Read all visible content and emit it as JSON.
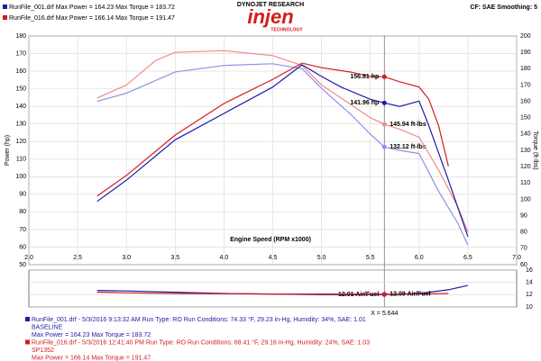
{
  "header": {
    "run1": "RunFile_001.drf Max Power = 164.23   Max Torque = 183.72",
    "run2": "RunFile_016.drf Max Power = 166.14   Max Torque = 191.47",
    "brand": "DYNOJET RESEARCH",
    "logo": "injen",
    "logo_sub": "TECHNOLOGY",
    "settings": "CF: SAE  Smoothing: 5"
  },
  "chart_data": [
    {
      "type": "line",
      "ylabel": "Power (hp)",
      "y2label": "Torque (ft-lbs)",
      "xlabel": "Engine Speed (RPM x1000)",
      "xlim": [
        2,
        7
      ],
      "xticks": [
        {
          "value": 2,
          "label": "2.0"
        },
        {
          "value": 2.5,
          "label": "2.5"
        },
        {
          "value": 3,
          "label": "3.0"
        },
        {
          "value": 3.5,
          "label": "3.5"
        },
        {
          "value": 4,
          "label": "4.0"
        },
        {
          "value": 4.5,
          "label": "4.5"
        },
        {
          "value": 5,
          "label": "5.0"
        },
        {
          "value": 5.5,
          "label": "5.5"
        },
        {
          "value": 6,
          "label": "6.0"
        },
        {
          "value": 6.5,
          "label": "6.5"
        },
        {
          "value": 7,
          "label": "7.0"
        }
      ],
      "ylim": [
        50,
        180
      ],
      "yticks": [
        50,
        60,
        70,
        80,
        90,
        100,
        110,
        120,
        130,
        140,
        150,
        160,
        170,
        180
      ],
      "y2lim": [
        60,
        200
      ],
      "y2ticks": [
        60,
        70,
        80,
        90,
        100,
        110,
        120,
        130,
        140,
        150,
        160,
        170,
        180,
        190,
        200
      ],
      "grid": true,
      "cursor": {
        "value": 5.644,
        "label": "X = 5.644"
      },
      "series": [
        {
          "color": "#9090e6",
          "axis": "y2",
          "x": [
            2.7,
            3.0,
            3.5,
            4.0,
            4.5,
            4.8,
            5.0,
            5.3,
            5.5,
            5.644,
            5.8,
            6.0,
            6.2,
            6.4,
            6.5
          ],
          "values": [
            160,
            165,
            178,
            182,
            183,
            180,
            168,
            152,
            140,
            132.12,
            130,
            128,
            105,
            85,
            72
          ],
          "cursor": {
            "value": 132.12,
            "label": "132.12 ft-lbs"
          }
        },
        {
          "color": "#f08a8a",
          "axis": "y2",
          "x": [
            2.7,
            3.0,
            3.3,
            3.5,
            4.0,
            4.5,
            4.8,
            5.0,
            5.3,
            5.5,
            5.644,
            5.8,
            6.0,
            6.2,
            6.4,
            6.5
          ],
          "values": [
            162,
            170,
            185,
            190,
            191,
            188,
            182,
            170,
            158,
            150,
            145.94,
            143,
            138,
            118,
            95,
            80
          ],
          "cursor": {
            "value": 145.94,
            "label": "145.94 ft-lbs"
          }
        },
        {
          "color": "#1c1ca8",
          "x": [
            2.7,
            3.0,
            3.5,
            4.0,
            4.5,
            4.8,
            5.0,
            5.2,
            5.5,
            5.644,
            5.8,
            6.0,
            6.1,
            6.3,
            6.5
          ],
          "values": [
            86,
            98,
            121,
            136,
            151,
            163.6,
            157,
            151,
            144,
            141.96,
            140,
            143,
            129,
            98,
            66
          ],
          "cursor": {
            "value": 141.96,
            "label": "141.96 hp"
          }
        },
        {
          "color": "#d41c1c",
          "x": [
            2.7,
            3.0,
            3.5,
            4.0,
            4.5,
            4.8,
            5.0,
            5.3,
            5.5,
            5.644,
            5.8,
            6.0,
            6.1,
            6.2,
            6.3
          ],
          "values": [
            89,
            100.7,
            123.7,
            141.6,
            155.4,
            164.6,
            162,
            159.5,
            157,
            156.81,
            154,
            151,
            144,
            129,
            106
          ],
          "cursor": {
            "value": 156.81,
            "label": "156.81 hp"
          }
        }
      ]
    },
    {
      "type": "line",
      "xlim": [
        2,
        7
      ],
      "ylim": [
        10,
        16
      ],
      "yticks": [
        10,
        12,
        14,
        16
      ],
      "grid": true,
      "series": [
        {
          "color": "#1c1ca8",
          "x": [
            2.7,
            3.0,
            3.5,
            4.0,
            4.5,
            5.0,
            5.5,
            5.644,
            6.0,
            6.3,
            6.5
          ],
          "values": [
            12.7,
            12.6,
            12.4,
            12.2,
            12.1,
            12.0,
            12.0,
            12.01,
            12.2,
            12.8,
            13.5
          ],
          "cursor": {
            "value": 12.01,
            "label": "12.01 Air/Fuel"
          }
        },
        {
          "color": "#d41c1c",
          "x": [
            2.7,
            3.0,
            3.5,
            4.0,
            4.5,
            5.0,
            5.5,
            5.644,
            6.0,
            6.3
          ],
          "values": [
            12.4,
            12.3,
            12.2,
            12.15,
            12.1,
            12.1,
            12.1,
            12.09,
            12.1,
            12.2
          ],
          "cursor": {
            "value": 12.09,
            "label": "12.09 Air/Fuel"
          }
        }
      ]
    }
  ],
  "footer": [
    {
      "color": "#1c1ca8",
      "lines": [
        "RunFile_001.drf - 5/3/2016 9:13:32 AM  Run Type: RO  Run Conditions: 74.33 °F, 29.23 in-Hg,  Humidity:  34%, SAE: 1.01",
        "BASELINE",
        "Max Power = 164.23   Max Torque = 183.72"
      ]
    },
    {
      "color": "#d41c1c",
      "lines": [
        "RunFile_016.drf - 5/3/2016 12:41:40 PM  Run Type: RO  Run Conditions: 88.41 °F, 29.16 in-Hg,  Humidity:  24%, SAE: 1.03",
        "SP1352",
        "Max Power = 166.14   Max Torque = 191.47"
      ]
    }
  ]
}
